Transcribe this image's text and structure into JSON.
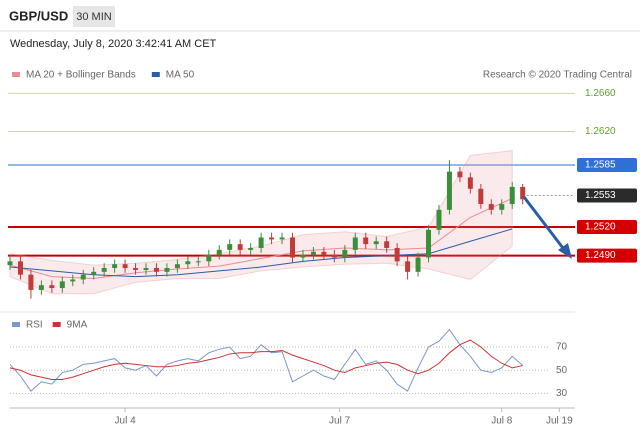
{
  "header": {
    "symbol": "GBP/USD",
    "timeframe": "30 MIN",
    "timestamp": "Wednesday, July 8, 2020 3:42:41 AM CET"
  },
  "chart_data": [
    {
      "type": "candlestick",
      "credit": "Research © 2020 Trading Central",
      "up_color": "#3b8f3b",
      "down_color": "#c23b3b",
      "xlim": [
        0,
        108
      ],
      "xticks": [
        {
          "value": 22,
          "label": "Jul 4"
        },
        {
          "value": 63,
          "label": "Jul 7"
        },
        {
          "value": 94,
          "label": "Jul 8"
        },
        {
          "value": 105,
          "label": "Jul 19"
        }
      ],
      "ylim": [
        1.2433,
        1.2674
      ],
      "x": [
        0,
        2,
        4,
        6,
        8,
        10,
        12,
        14,
        16,
        18,
        20,
        22,
        24,
        26,
        28,
        30,
        32,
        34,
        36,
        38,
        40,
        42,
        44,
        46,
        48,
        50,
        52,
        54,
        56,
        58,
        60,
        62,
        64,
        66,
        68,
        70,
        72,
        74,
        76,
        78,
        80,
        82,
        84,
        86,
        88,
        90,
        92,
        94,
        96,
        98
      ],
      "open": [
        1.248,
        1.2484,
        1.247,
        1.2454,
        1.2459,
        1.2456,
        1.2463,
        1.2465,
        1.247,
        1.2473,
        1.2477,
        1.2481,
        1.2477,
        1.2475,
        1.2477,
        1.2473,
        1.2477,
        1.2481,
        1.2484,
        1.2484,
        1.2491,
        1.2496,
        1.2502,
        1.2496,
        1.2498,
        1.2509,
        1.2507,
        1.2509,
        1.2488,
        1.2491,
        1.2494,
        1.2491,
        1.2488,
        1.2496,
        1.2509,
        1.2502,
        1.2505,
        1.2498,
        1.2484,
        1.2473,
        1.2488,
        1.2517,
        1.2538,
        1.2578,
        1.2572,
        1.256,
        1.2544,
        1.2538,
        1.2544,
        1.2562
      ],
      "high": [
        1.2489,
        1.2489,
        1.2475,
        1.2464,
        1.2464,
        1.2468,
        1.247,
        1.2475,
        1.2478,
        1.2482,
        1.2486,
        1.2486,
        1.2482,
        1.2482,
        1.2482,
        1.2482,
        1.2486,
        1.2489,
        1.2489,
        1.2496,
        1.2501,
        1.2507,
        1.2507,
        1.2503,
        1.2514,
        1.2514,
        1.2514,
        1.2514,
        1.2496,
        1.2499,
        1.2499,
        1.2496,
        1.2501,
        1.2514,
        1.2514,
        1.251,
        1.251,
        1.2503,
        1.2489,
        1.2493,
        1.2522,
        1.2543,
        1.259,
        1.2583,
        1.2577,
        1.2565,
        1.2549,
        1.2549,
        1.2567,
        1.2565
      ],
      "low": [
        1.2475,
        1.2465,
        1.2445,
        1.2449,
        1.2451,
        1.2451,
        1.2458,
        1.246,
        1.2465,
        1.2468,
        1.2472,
        1.2472,
        1.247,
        1.247,
        1.2468,
        1.2468,
        1.2472,
        1.2476,
        1.2479,
        1.2479,
        1.2486,
        1.2491,
        1.2491,
        1.2491,
        1.2493,
        1.2502,
        1.2502,
        1.2483,
        1.2483,
        1.2486,
        1.2486,
        1.2483,
        1.2483,
        1.2491,
        1.2497,
        1.2497,
        1.2493,
        1.2479,
        1.2465,
        1.2468,
        1.2483,
        1.2512,
        1.2533,
        1.2567,
        1.2555,
        1.2539,
        1.2533,
        1.2533,
        1.2539,
        1.2544
      ],
      "close": [
        1.2484,
        1.247,
        1.2454,
        1.2459,
        1.2456,
        1.2463,
        1.2465,
        1.247,
        1.2473,
        1.2477,
        1.2481,
        1.2477,
        1.2475,
        1.2477,
        1.2473,
        1.2477,
        1.2481,
        1.2484,
        1.2484,
        1.2491,
        1.2496,
        1.2502,
        1.2496,
        1.2498,
        1.2509,
        1.2507,
        1.2509,
        1.2488,
        1.2491,
        1.2494,
        1.2491,
        1.2488,
        1.2496,
        1.2509,
        1.2502,
        1.2505,
        1.2498,
        1.2484,
        1.2473,
        1.2488,
        1.2517,
        1.2538,
        1.2578,
        1.2572,
        1.256,
        1.2544,
        1.2538,
        1.2544,
        1.2562,
        1.2549
      ],
      "series": [
        {
          "name": "MA 20 + Bollinger Bands",
          "color": "#e98c93",
          "x": [
            0,
            8,
            16,
            24,
            32,
            40,
            48,
            56,
            64,
            72,
            80,
            88,
            96
          ],
          "values": [
            1.248,
            1.2468,
            1.2466,
            1.2472,
            1.2476,
            1.2479,
            1.2487,
            1.2495,
            1.2498,
            1.2496,
            1.2498,
            1.253,
            1.255
          ],
          "upper": [
            1.2492,
            1.2485,
            1.248,
            1.2482,
            1.2486,
            1.2492,
            1.25,
            1.2512,
            1.2515,
            1.251,
            1.252,
            1.2595,
            1.26
          ],
          "lower": [
            1.2468,
            1.245,
            1.245,
            1.2462,
            1.2466,
            1.2466,
            1.2474,
            1.2478,
            1.2481,
            1.2482,
            1.2476,
            1.2465,
            1.25
          ]
        },
        {
          "name": "MA 50",
          "color": "#2a5ca8",
          "x": [
            0,
            8,
            16,
            24,
            32,
            40,
            48,
            56,
            64,
            72,
            80,
            88,
            96
          ],
          "values": [
            1.2478,
            1.2474,
            1.247,
            1.2468,
            1.247,
            1.2474,
            1.2478,
            1.2484,
            1.2488,
            1.249,
            1.2492,
            1.2505,
            1.2518
          ]
        }
      ],
      "levels": [
        {
          "value": 1.266,
          "label": "1.2660",
          "color": "#5f9e2e",
          "line_color": "#cbd8a6",
          "box": false
        },
        {
          "value": 1.262,
          "label": "1.2620",
          "color": "#5f9e2e",
          "line_color": "#cbd8a6",
          "box": false
        },
        {
          "value": 1.2585,
          "label": "1.2585",
          "color": "#2f6fd6",
          "line_color": "#2f6fd6",
          "box": true
        },
        {
          "value": 1.2553,
          "label": "1.2553",
          "color": "#2b2b2b",
          "line_color": "#999999",
          "box": true,
          "dashed": true
        },
        {
          "value": 1.252,
          "label": "1.2520",
          "color": "#d40000",
          "line_color": "#c40000",
          "box": true,
          "width": 2
        },
        {
          "value": 1.249,
          "label": "1.2490",
          "color": "#d40000",
          "line_color": "#c40000",
          "box": true,
          "width": 2
        }
      ]
    },
    {
      "type": "line",
      "ylim": [
        20,
        95
      ],
      "yticks": [
        30,
        50,
        70
      ],
      "series": [
        {
          "name": "RSI",
          "color": "#7b96cc",
          "values": [
            55,
            45,
            32,
            40,
            38,
            48,
            50,
            55,
            56,
            58,
            60,
            52,
            50,
            54,
            45,
            55,
            58,
            60,
            58,
            65,
            68,
            70,
            60,
            62,
            72,
            65,
            66,
            40,
            45,
            50,
            45,
            42,
            55,
            68,
            55,
            58,
            50,
            38,
            32,
            52,
            70,
            75,
            85,
            72,
            62,
            50,
            48,
            52,
            62,
            54
          ]
        },
        {
          "name": "9MA",
          "color": "#cc3333",
          "values": [
            52,
            50,
            46,
            44,
            42,
            42,
            44,
            47,
            50,
            53,
            55,
            56,
            55,
            54,
            53,
            53,
            54,
            56,
            57,
            59,
            61,
            64,
            65,
            65,
            66,
            66,
            67,
            63,
            60,
            57,
            54,
            50,
            48,
            52,
            54,
            56,
            57,
            55,
            50,
            47,
            50,
            56,
            65,
            72,
            76,
            70,
            62,
            56,
            52,
            54
          ]
        }
      ]
    }
  ]
}
